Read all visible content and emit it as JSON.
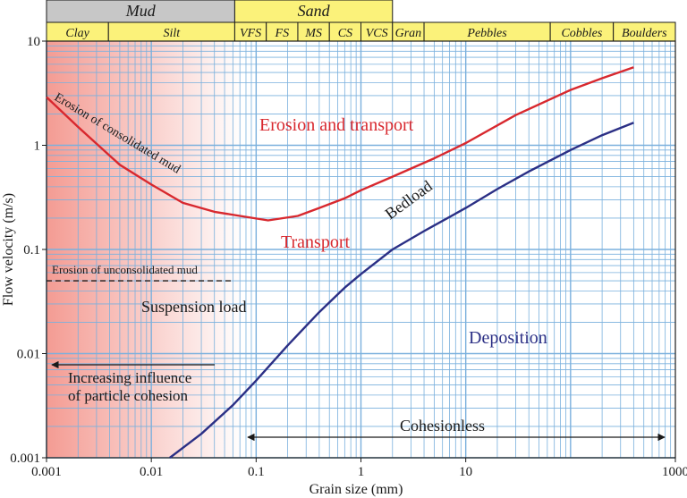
{
  "chart_data": {
    "type": "line",
    "xlabel": "Grain size (mm)",
    "ylabel": "Flow velocity (m/s)",
    "x_scale": "log",
    "y_scale": "log",
    "xlim": [
      0.001,
      1000
    ],
    "ylim": [
      0.001,
      10
    ],
    "grid": true,
    "x_ticks": [
      {
        "v": 0.001,
        "label": "0.001"
      },
      {
        "v": 0.01,
        "label": "0.01"
      },
      {
        "v": 0.1,
        "label": "0.1"
      },
      {
        "v": 1,
        "label": "1"
      },
      {
        "v": 10,
        "label": "10"
      },
      {
        "v": 1000,
        "label": "1000"
      }
    ],
    "y_ticks": [
      {
        "v": 10,
        "label": "10"
      },
      {
        "v": 1,
        "label": "1"
      },
      {
        "v": 0.1,
        "label": "0.1"
      },
      {
        "v": 0.01,
        "label": "0.01"
      },
      {
        "v": 0.001,
        "label": "0.001"
      }
    ],
    "class_groups": [
      {
        "label": "Mud",
        "from": 0.001,
        "to": 0.0625,
        "color": "#c7c7c7"
      },
      {
        "label": "Sand",
        "from": 0.0625,
        "to": 2,
        "color": "#fbf27a"
      }
    ],
    "size_classes": [
      {
        "label": "Clay",
        "from": 0.001,
        "to": 0.0039
      },
      {
        "label": "Silt",
        "from": 0.0039,
        "to": 0.0625
      },
      {
        "label": "VFS",
        "from": 0.0625,
        "to": 0.125
      },
      {
        "label": "FS",
        "from": 0.125,
        "to": 0.25
      },
      {
        "label": "MS",
        "from": 0.25,
        "to": 0.5
      },
      {
        "label": "CS",
        "from": 0.5,
        "to": 1
      },
      {
        "label": "VCS",
        "from": 1,
        "to": 2
      },
      {
        "label": "Gran",
        "from": 2,
        "to": 4
      },
      {
        "label": "Pebbles",
        "from": 4,
        "to": 64
      },
      {
        "label": "Cobbles",
        "from": 64,
        "to": 256
      },
      {
        "label": "Boulders",
        "from": 256,
        "to": 1000
      }
    ],
    "series": [
      {
        "color": "#d8282e",
        "points": [
          [
            0.001,
            2.9
          ],
          [
            0.002,
            1.5
          ],
          [
            0.005,
            0.65
          ],
          [
            0.01,
            0.42
          ],
          [
            0.02,
            0.28
          ],
          [
            0.04,
            0.23
          ],
          [
            0.07,
            0.21
          ],
          [
            0.13,
            0.19
          ],
          [
            0.25,
            0.21
          ],
          [
            0.4,
            0.25
          ],
          [
            0.7,
            0.31
          ],
          [
            1,
            0.37
          ],
          [
            2,
            0.5
          ],
          [
            5,
            0.75
          ],
          [
            10,
            1.05
          ],
          [
            30,
            1.95
          ],
          [
            100,
            3.4
          ],
          [
            200,
            4.4
          ],
          [
            400,
            5.6
          ]
        ]
      },
      {
        "color": "#2b2f85",
        "points": [
          [
            0.015,
            0.001
          ],
          [
            0.03,
            0.0017
          ],
          [
            0.06,
            0.0032
          ],
          [
            0.1,
            0.0055
          ],
          [
            0.2,
            0.012
          ],
          [
            0.4,
            0.025
          ],
          [
            0.7,
            0.043
          ],
          [
            1,
            0.058
          ],
          [
            2,
            0.1
          ],
          [
            4,
            0.15
          ],
          [
            10,
            0.25
          ],
          [
            20,
            0.38
          ],
          [
            40,
            0.56
          ],
          [
            100,
            0.9
          ],
          [
            200,
            1.25
          ],
          [
            400,
            1.65
          ]
        ]
      }
    ],
    "dashed_line": {
      "label": "Erosion of unconsolidated mud",
      "y": 0.05,
      "x_from": 0.001,
      "x_to": 0.06
    },
    "annotations": [
      {
        "text": "Erosion and transport",
        "color": "#d8282e"
      },
      {
        "text": "Transport",
        "color": "#d8282e"
      },
      {
        "text": "Erosion of consolidated mud",
        "color": "#1a1a1a"
      },
      {
        "text": "Bedload",
        "color": "#1a1a1a"
      },
      {
        "text": "Suspension load",
        "color": "#1a1a1a"
      },
      {
        "text": "Deposition",
        "color": "#2b2f85"
      },
      {
        "text": "Increasing influence",
        "color": "#1a1a1a"
      },
      {
        "text": "of particle cohesion",
        "color": "#1a1a1a"
      },
      {
        "text": "Cohesionless",
        "color": "#1a1a1a"
      }
    ],
    "colors": {
      "grid": "#7ab0dd",
      "axis": "#1a1a1a",
      "shade": "#f28a80",
      "class_row": "#fbf27a"
    }
  }
}
